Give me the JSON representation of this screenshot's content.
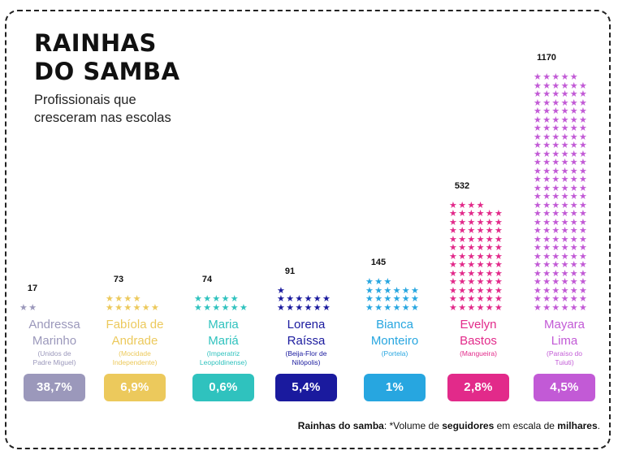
{
  "title_lines": [
    "RAINHAS",
    "DO SAMBA"
  ],
  "subtitle_lines": [
    "Profissionais que",
    "cresceram nas escolas"
  ],
  "footnote": {
    "bold_start": "Rainhas do samba",
    "mid1": ": *Volume de ",
    "bold_mid": "seguidores",
    "mid2": " em escala de ",
    "bold_end": "milhares",
    "end": "."
  },
  "icon": "star-icon",
  "chart_data": {
    "type": "bar",
    "unit": "milhares de seguidores",
    "categories": [
      {
        "name_lines": [
          "Andressa",
          "Marinho"
        ],
        "school_lines": [
          "(Unidos de",
          "Padre Miguel)"
        ],
        "value": 17,
        "value_label": "17",
        "percent": "38,7%",
        "color": "#9b98bb"
      },
      {
        "name_lines": [
          "Fabíola de",
          "Andrade"
        ],
        "school_lines": [
          "(Mocidade",
          "Independente)"
        ],
        "value": 73,
        "value_label": "73",
        "percent": "6,9%",
        "color": "#ecc95c"
      },
      {
        "name_lines": [
          "Maria",
          "Mariá"
        ],
        "school_lines": [
          "(Imperatriz",
          "Leopoldinense)"
        ],
        "value": 74,
        "value_label": "74",
        "percent": "0,6%",
        "color": "#2fc2be"
      },
      {
        "name_lines": [
          "Lorena",
          "Raíssa"
        ],
        "school_lines": [
          "(Beija-Flor de",
          "Nilópolis)"
        ],
        "value": 91,
        "value_label": "91",
        "percent": "5,4%",
        "color": "#1a1a9e"
      },
      {
        "name_lines": [
          "Bianca",
          "Monteiro"
        ],
        "school_lines": [
          "(Portela)"
        ],
        "value": 145,
        "value_label": "145",
        "percent": "1%",
        "color": "#27a6e0"
      },
      {
        "name_lines": [
          "Evelyn",
          "Bastos"
        ],
        "school_lines": [
          "(Mangueira)"
        ],
        "value": 532,
        "value_label": "532",
        "percent": "2,8%",
        "color": "#e22a8a"
      },
      {
        "name_lines": [
          "Mayara",
          "Lima"
        ],
        "school_lines": [
          "(Paraíso do",
          "Tuiuti)"
        ],
        "value": 1170,
        "value_label": "1170",
        "percent": "4,5%",
        "color": "#c25ad6"
      }
    ]
  }
}
